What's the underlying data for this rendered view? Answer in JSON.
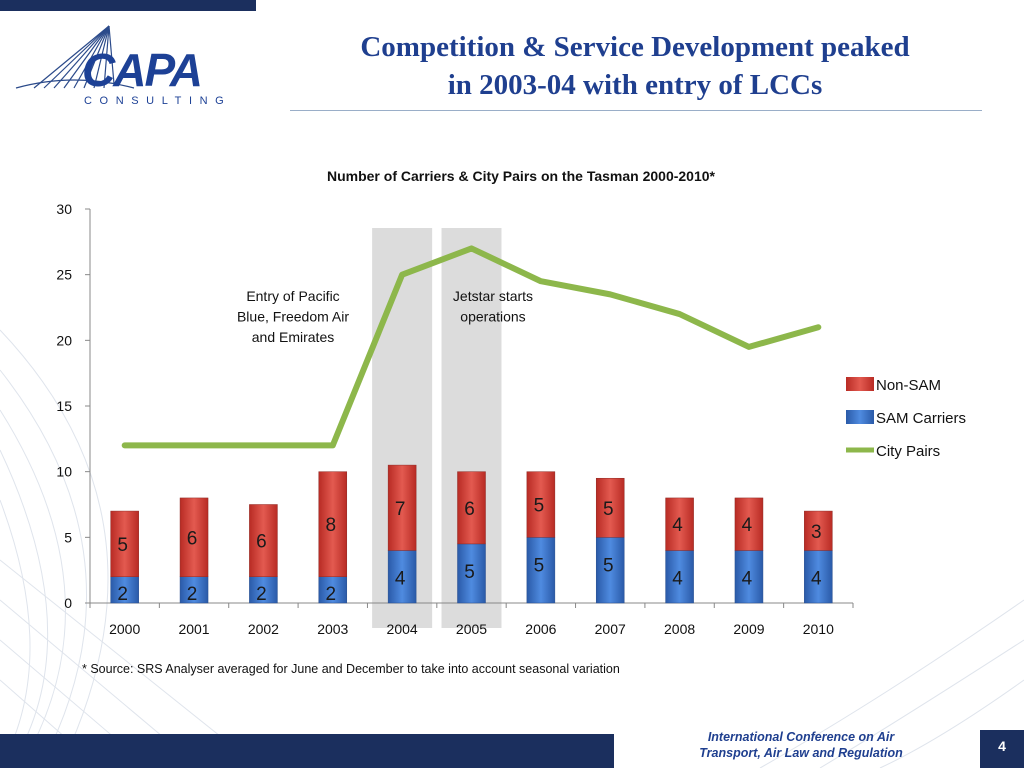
{
  "header": {
    "title_line1": "Competition & Service Development peaked",
    "title_line2": "in 2003-04 with entry of LCCs"
  },
  "logo": {
    "main": "CAPA",
    "sub": "CONSULTING"
  },
  "chart_data": {
    "type": "bar",
    "stacked": true,
    "title": "Number of Carriers & City Pairs on the Tasman 2000-2010*",
    "categories": [
      "2000",
      "2001",
      "2002",
      "2003",
      "2004",
      "2005",
      "2006",
      "2007",
      "2008",
      "2009",
      "2010"
    ],
    "ylim": [
      0,
      30
    ],
    "yticks": [
      0,
      5,
      10,
      15,
      20,
      25,
      30
    ],
    "legend_position": "right",
    "series": [
      {
        "name": "SAM Carriers",
        "type": "bar",
        "color": "#3b74c7",
        "values": [
          2,
          2,
          2,
          2,
          4,
          4.5,
          5,
          5,
          4,
          4,
          4
        ],
        "labels": [
          "2",
          "2",
          "2",
          "2",
          "4",
          "5",
          "5",
          "5",
          "4",
          "4",
          "4"
        ]
      },
      {
        "name": "Non-SAM",
        "type": "bar",
        "color": "#d63c34",
        "values": [
          5,
          6,
          5.5,
          8,
          6.5,
          5.5,
          5,
          4.5,
          4,
          4,
          3
        ],
        "labels": [
          "5",
          "6",
          "6",
          "8",
          "7",
          "6",
          "5",
          "5",
          "4",
          "4",
          "3"
        ]
      },
      {
        "name": "City Pairs",
        "type": "line",
        "color": "#8db74b",
        "values": [
          12,
          12,
          12,
          12,
          25,
          27,
          24.5,
          23.5,
          22,
          19.5,
          21
        ]
      }
    ],
    "annotations": [
      {
        "category": "2004",
        "text": [
          "Entry of Pacific",
          "Blue, Freedom Air",
          "and Emirates"
        ]
      },
      {
        "category": "2005",
        "text": [
          "Jetstar starts",
          "operations"
        ]
      }
    ],
    "highlight_categories": [
      "2004",
      "2005"
    ]
  },
  "footnote": "* Source: SRS Analyser averaged for June and December to take into account seasonal variation",
  "footer": {
    "conference_line1": "International Conference on Air",
    "conference_line2": "Transport, Air Law and Regulation",
    "page_number": "4"
  },
  "colors": {
    "navy": "#1b2f5e",
    "title_blue": "#1f3f8f"
  }
}
